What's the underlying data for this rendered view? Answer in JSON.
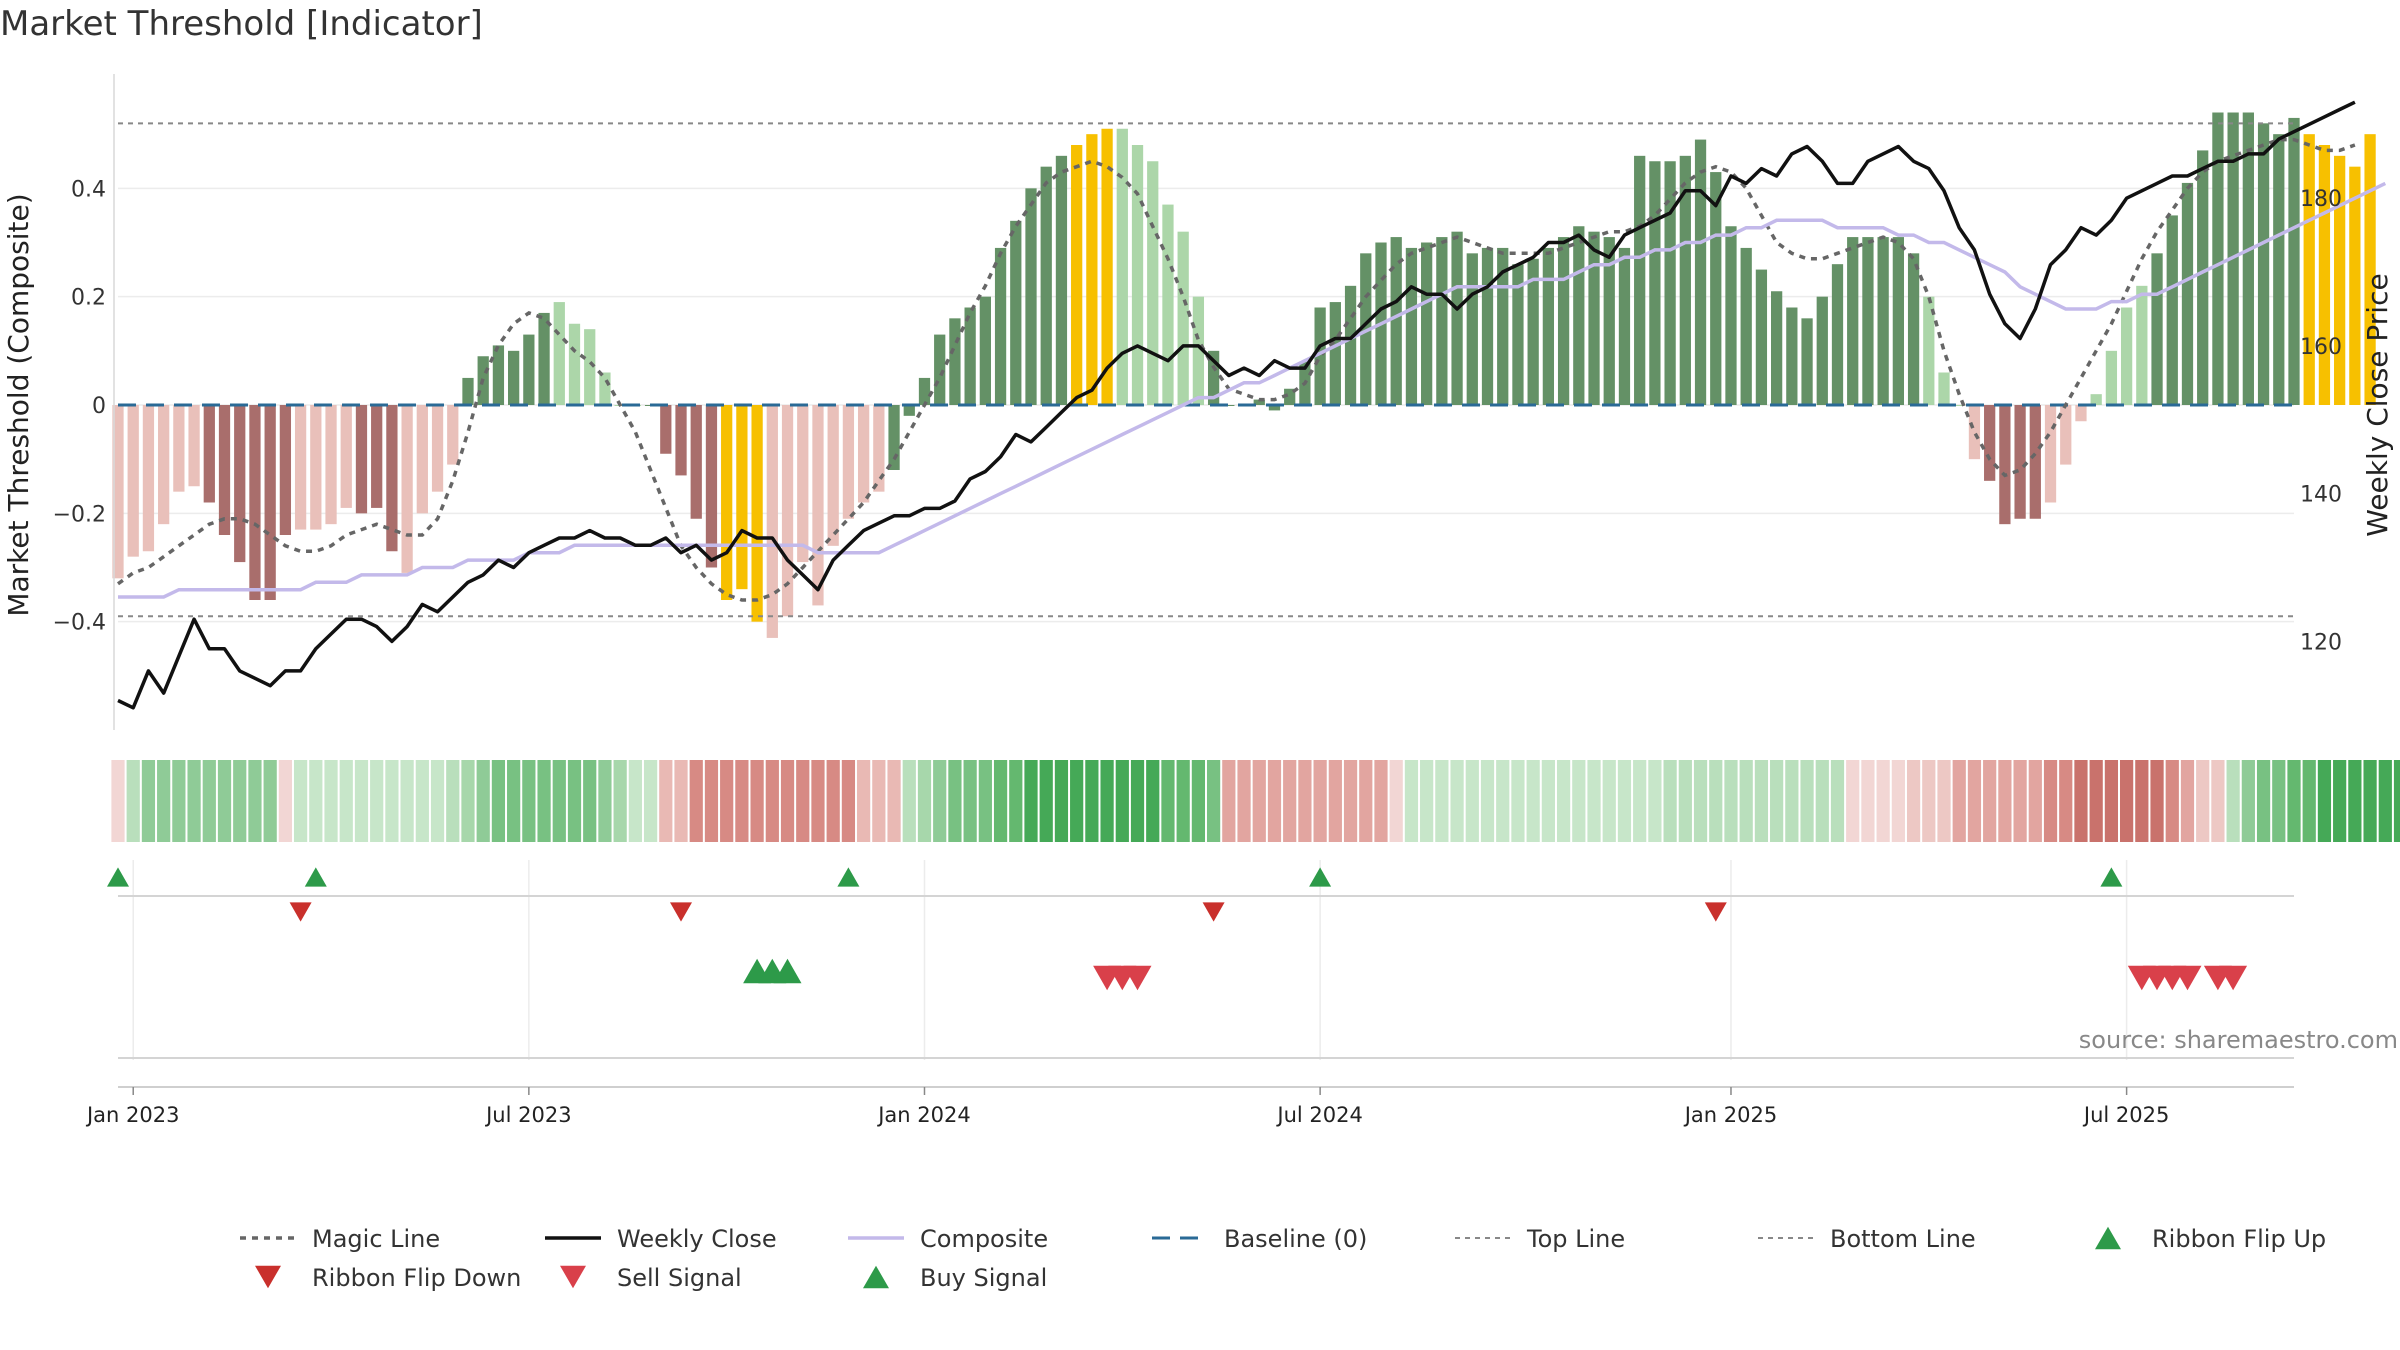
{
  "chart_data": {
    "type": "bar",
    "title": "Market Threshold [Indicator]",
    "source": "source: sharemaestro.com",
    "y_left_label": "Market Threshold (Composite)",
    "y_right_label": "Weekly Close Price",
    "y_left_ticks": [
      0.4,
      0.2,
      0,
      -0.2,
      -0.4
    ],
    "y_left_tick_labels": [
      "0.4",
      "0.2",
      "0",
      "−0.2",
      "−0.4"
    ],
    "y_right_ticks": [
      180,
      160,
      140,
      120
    ],
    "ylim_left": [
      -0.6,
      0.6
    ],
    "ylim_right": [
      108,
      196
    ],
    "top_line": 0.52,
    "bottom_line": -0.39,
    "x_range": [
      "2022-12-26",
      "2025-09-22"
    ],
    "x_ticks": [
      {
        "date": "2023-01-02",
        "label": "Jan 2023"
      },
      {
        "date": "2023-07-03",
        "label": "Jul 2023"
      },
      {
        "date": "2024-01-01",
        "label": "Jan 2024"
      },
      {
        "date": "2024-07-01",
        "label": "Jul 2024"
      },
      {
        "date": "2025-01-06",
        "label": "Jan 2025"
      },
      {
        "date": "2025-07-07",
        "label": "Jul 2025"
      }
    ],
    "colors": {
      "bar_light_red": "#e9c0ba",
      "bar_dark_red": "#a96e6c",
      "bar_light_green": "#acd6a9",
      "bar_dark_green": "#649166",
      "bar_extreme": "#f7c000",
      "weekly_close": "#111111",
      "composite": "#c3b9ea",
      "magic_line": "#666666",
      "baseline": "#2a6a96",
      "threshold_line": "#888888",
      "buy": "#2d9a49",
      "sell": "#d9404a",
      "ribbon_up": "#2d9a49",
      "ribbon_down": "#c9302c"
    },
    "legend": [
      {
        "label": "Magic Line",
        "marker": "dotted-line",
        "color": "#666666"
      },
      {
        "label": "Weekly Close",
        "marker": "solid-line",
        "color": "#111111"
      },
      {
        "label": "Composite",
        "marker": "solid-line",
        "color": "#c3b9ea"
      },
      {
        "label": "Baseline (0)",
        "marker": "dashed-line",
        "color": "#2a6a96"
      },
      {
        "label": "Top Line",
        "marker": "dashed-thin",
        "color": "#888888"
      },
      {
        "label": "Bottom Line",
        "marker": "dashed-thin",
        "color": "#888888"
      },
      {
        "label": "Ribbon Flip Up",
        "marker": "triangle-up",
        "color": "#2d9a49"
      },
      {
        "label": "Ribbon Flip Down",
        "marker": "triangle-down",
        "color": "#c9302c"
      },
      {
        "label": "Sell Signal",
        "marker": "triangle-down",
        "color": "#d9404a"
      },
      {
        "label": "Buy Signal",
        "marker": "triangle-up",
        "color": "#2d9a49"
      }
    ],
    "threshold_values": [
      -0.32,
      -0.28,
      -0.27,
      -0.22,
      -0.16,
      -0.15,
      -0.18,
      -0.24,
      -0.29,
      -0.36,
      -0.36,
      -0.24,
      -0.23,
      -0.23,
      -0.22,
      -0.19,
      -0.2,
      -0.19,
      -0.27,
      -0.31,
      -0.2,
      -0.16,
      -0.11,
      0.05,
      0.09,
      0.11,
      0.1,
      0.13,
      0.17,
      0.19,
      0.15,
      0.14,
      0.06,
      0,
      0,
      0,
      -0.09,
      -0.13,
      -0.21,
      -0.3,
      -0.36,
      -0.34,
      -0.4,
      -0.43,
      -0.39,
      -0.29,
      -0.37,
      -0.26,
      -0.21,
      -0.18,
      -0.16,
      -0.12,
      -0.02,
      0.05,
      0.13,
      0.16,
      0.18,
      0.2,
      0.29,
      0.34,
      0.4,
      0.44,
      0.46,
      0.48,
      0.5,
      0.51,
      0.51,
      0.48,
      0.45,
      0.37,
      0.32,
      0.2,
      0.1,
      0,
      0,
      0.01,
      -0.01,
      0.03,
      0.08,
      0.18,
      0.19,
      0.22,
      0.28,
      0.3,
      0.31,
      0.29,
      0.3,
      0.31,
      0.32,
      0.28,
      0.29,
      0.29,
      0.26,
      0.27,
      0.29,
      0.31,
      0.33,
      0.32,
      0.31,
      0.29,
      0.46,
      0.45,
      0.45,
      0.46,
      0.49,
      0.43,
      0.33,
      0.29,
      0.25,
      0.21,
      0.18,
      0.16,
      0.2,
      0.26,
      0.31,
      0.31,
      0.31,
      0.31,
      0.28,
      0.2,
      0.06,
      0,
      -0.1,
      -0.14,
      -0.22,
      -0.21,
      -0.21,
      -0.18,
      -0.11,
      -0.03,
      0.02,
      0.1,
      0.18,
      0.22,
      0.28,
      0.35,
      0.41,
      0.47,
      0.54,
      0.54,
      0.54,
      0.52,
      0.5,
      0.53,
      0.5,
      0.48,
      0.46,
      0.44,
      0.5
    ],
    "bar_states": "LLLLLLDDDDDDLLLLDDDLLLLGGGGGGLLLLLLDDDDDYYYLLLLLLLLGGGGGGGGGGGGYYYLLLLLLGGGGGGGGGGGGGGGGGGGGGGGGGGGGGGGGGGGGGGGGGGGGGGGLLLLDDDDLLLLLLLGGGGGGGGGGYYYYYYYYGG",
    "weekly_close": [
      112,
      111,
      116,
      113,
      118,
      123,
      119,
      119,
      116,
      115,
      114,
      116,
      116,
      119,
      121,
      123,
      123,
      122,
      120,
      122,
      125,
      124,
      126,
      128,
      129,
      131,
      130,
      132,
      133,
      134,
      134,
      135,
      134,
      134,
      133,
      133,
      134,
      132,
      133,
      131,
      132,
      135,
      134,
      134,
      131,
      129,
      127,
      131,
      133,
      135,
      136,
      137,
      137,
      138,
      138,
      139,
      142,
      143,
      145,
      148,
      147,
      149,
      151,
      153,
      154,
      157,
      159,
      160,
      159,
      158,
      160,
      160,
      158,
      156,
      157,
      156,
      158,
      157,
      157,
      160,
      161,
      161,
      163,
      165,
      166,
      168,
      167,
      167,
      165,
      167,
      168,
      170,
      171,
      172,
      174,
      174,
      175,
      173,
      172,
      175,
      176,
      177,
      178,
      181,
      181,
      179,
      183,
      182,
      184,
      183,
      186,
      187,
      185,
      182,
      182,
      185,
      186,
      187,
      185,
      184,
      181,
      176,
      173,
      167,
      163,
      161,
      165,
      171,
      173,
      176,
      175,
      177,
      180,
      181,
      182,
      183,
      183,
      184,
      185,
      185,
      186,
      186,
      188,
      189,
      190,
      191,
      192,
      193
    ],
    "composite": [
      126,
      126,
      126,
      126,
      127,
      127,
      127,
      127,
      127,
      127,
      127,
      127,
      127,
      128,
      128,
      128,
      129,
      129,
      129,
      129,
      130,
      130,
      130,
      131,
      131,
      131,
      131,
      132,
      132,
      132,
      133,
      133,
      133,
      133,
      133,
      133,
      133,
      133,
      133,
      133,
      133,
      133,
      133,
      133,
      133,
      133,
      132,
      132,
      132,
      132,
      132,
      133,
      134,
      135,
      136,
      137,
      138,
      139,
      140,
      141,
      142,
      143,
      144,
      145,
      146,
      147,
      148,
      149,
      150,
      151,
      152,
      153,
      153,
      154,
      155,
      155,
      156,
      157,
      158,
      159,
      160,
      161,
      162,
      163,
      164,
      165,
      166,
      167,
      168,
      168,
      168,
      168,
      168,
      169,
      169,
      169,
      170,
      171,
      171,
      172,
      172,
      173,
      173,
      174,
      174,
      175,
      175,
      176,
      176,
      177,
      177,
      177,
      177,
      176,
      176,
      176,
      176,
      175,
      175,
      174,
      174,
      173,
      172,
      171,
      170,
      168,
      167,
      166,
      165,
      165,
      165,
      166,
      166,
      167,
      167,
      168,
      169,
      170,
      171,
      172,
      173,
      174,
      175,
      176,
      177,
      178,
      179,
      180,
      181,
      182
    ],
    "magic_line": [
      -0.33,
      -0.31,
      -0.3,
      -0.28,
      -0.26,
      -0.24,
      -0.22,
      -0.21,
      -0.21,
      -0.22,
      -0.24,
      -0.26,
      -0.27,
      -0.27,
      -0.26,
      -0.24,
      -0.23,
      -0.22,
      -0.23,
      -0.24,
      -0.24,
      -0.21,
      -0.14,
      -0.05,
      0.05,
      0.11,
      0.15,
      0.17,
      0.16,
      0.13,
      0.1,
      0.08,
      0.05,
      0,
      -0.05,
      -0.12,
      -0.19,
      -0.26,
      -0.3,
      -0.33,
      -0.35,
      -0.36,
      -0.36,
      -0.35,
      -0.33,
      -0.3,
      -0.27,
      -0.24,
      -0.21,
      -0.18,
      -0.14,
      -0.1,
      -0.05,
      0,
      0.05,
      0.11,
      0.17,
      0.22,
      0.28,
      0.33,
      0.37,
      0.41,
      0.43,
      0.44,
      0.45,
      0.44,
      0.42,
      0.39,
      0.33,
      0.27,
      0.2,
      0.12,
      0.07,
      0.03,
      0.02,
      0.01,
      0.01,
      0.02,
      0.04,
      0.09,
      0.12,
      0.16,
      0.2,
      0.23,
      0.26,
      0.28,
      0.29,
      0.3,
      0.31,
      0.3,
      0.29,
      0.28,
      0.28,
      0.28,
      0.28,
      0.29,
      0.3,
      0.31,
      0.32,
      0.32,
      0.33,
      0.35,
      0.38,
      0.41,
      0.43,
      0.44,
      0.43,
      0.4,
      0.35,
      0.3,
      0.28,
      0.27,
      0.27,
      0.28,
      0.29,
      0.3,
      0.31,
      0.3,
      0.27,
      0.2,
      0.1,
      0.02,
      -0.05,
      -0.1,
      -0.13,
      -0.12,
      -0.09,
      -0.05,
      0,
      0.05,
      0.1,
      0.15,
      0.21,
      0.27,
      0.32,
      0.36,
      0.4,
      0.43,
      0.45,
      0.46,
      0.47,
      0.48,
      0.49,
      0.49,
      0.48,
      0.47,
      0.47,
      0.48
    ],
    "ribbon_colors": [
      "#f2d6d4",
      "#b9dfbc",
      "#8fcb97",
      "#8fcb97",
      "#8fcb97",
      "#8fcb97",
      "#8fcb97",
      "#8fcb97",
      "#8fcb97",
      "#8fcb97",
      "#8fcb97",
      "#f2d6d4",
      "#c7e6c9",
      "#c7e6c9",
      "#c7e6c9",
      "#c7e6c9",
      "#c7e6c9",
      "#c7e6c9",
      "#c7e6c9",
      "#c7e6c9",
      "#c7e6c9",
      "#c7e6c9",
      "#b9dfbc",
      "#a7d7ab",
      "#8fcb97",
      "#78c182",
      "#78c182",
      "#78c182",
      "#78c182",
      "#78c182",
      "#78c182",
      "#78c182",
      "#8fcb97",
      "#a7d7ab",
      "#c7e6c9",
      "#c7e6c9",
      "#e9b9b4",
      "#e9b9b4",
      "#d78a84",
      "#d78a84",
      "#d78a84",
      "#d78a84",
      "#d78a84",
      "#d78a84",
      "#d78a84",
      "#d78a84",
      "#d78a84",
      "#d78a84",
      "#d78a84",
      "#e9b9b4",
      "#e9b9b4",
      "#e9b9b4",
      "#b9dfbc",
      "#a7d7ab",
      "#8fcb97",
      "#78c182",
      "#78c182",
      "#78c182",
      "#64b86f",
      "#64b86f",
      "#45a957",
      "#45a957",
      "#45a957",
      "#45a957",
      "#45a957",
      "#45a957",
      "#45a957",
      "#45a957",
      "#45a957",
      "#64b86f",
      "#64b86f",
      "#64b86f",
      "#78c182",
      "#e2a5a0",
      "#e2a5a0",
      "#e2a5a0",
      "#e2a5a0",
      "#e2a5a0",
      "#e2a5a0",
      "#e2a5a0",
      "#e2a5a0",
      "#e2a5a0",
      "#e2a5a0",
      "#e2a5a0",
      "#f2d6d4",
      "#c7e6c9",
      "#c7e6c9",
      "#c7e6c9",
      "#c7e6c9",
      "#c7e6c9",
      "#c7e6c9",
      "#c7e6c9",
      "#c7e6c9",
      "#c7e6c9",
      "#c7e6c9",
      "#c7e6c9",
      "#c7e6c9",
      "#c7e6c9",
      "#c7e6c9",
      "#c7e6c9",
      "#c7e6c9",
      "#c7e6c9",
      "#b9dfbc",
      "#b9dfbc",
      "#b9dfbc",
      "#b9dfbc",
      "#b9dfbc",
      "#b9dfbc",
      "#b9dfbc",
      "#b9dfbc",
      "#b9dfbc",
      "#b9dfbc",
      "#b9dfbc",
      "#b9dfbc",
      "#f2d6d4",
      "#f2d6d4",
      "#f2d6d4",
      "#f2d6d4",
      "#edc8c4",
      "#edc8c4",
      "#edc8c4",
      "#e2a5a0",
      "#e2a5a0",
      "#e2a5a0",
      "#e2a5a0",
      "#e2a5a0",
      "#e2a5a0",
      "#d78a84",
      "#d78a84",
      "#c9726c",
      "#c9726c",
      "#c9726c",
      "#c9726c",
      "#c9726c",
      "#c9726c",
      "#d78a84",
      "#e2a5a0",
      "#edc8c4",
      "#edc8c4",
      "#b9dfbc",
      "#8fcb97",
      "#78c182",
      "#78c182",
      "#64b86f",
      "#64b86f",
      "#45a957",
      "#45a957",
      "#45a957",
      "#45a957",
      "#45a957",
      "#45a957",
      "#64b86f",
      "#64b86f",
      "#78c182",
      "#78c182",
      "#8fcb97",
      "#a7d7ab"
    ],
    "ribbon_flip_up": [
      "2022-12-26",
      "2023-03-27",
      "2023-11-27",
      "2024-07-01",
      "2025-06-30"
    ],
    "ribbon_flip_down": [
      "2023-03-20",
      "2023-09-11",
      "2024-05-13",
      "2024-12-30"
    ],
    "buy_signals": [
      "2023-10-16",
      "2023-10-23",
      "2023-10-30"
    ],
    "sell_signals": [
      "2024-03-25",
      "2024-04-01",
      "2024-04-08",
      "2025-07-14",
      "2025-07-21",
      "2025-07-28",
      "2025-08-04",
      "2025-08-18",
      "2025-08-25"
    ]
  }
}
